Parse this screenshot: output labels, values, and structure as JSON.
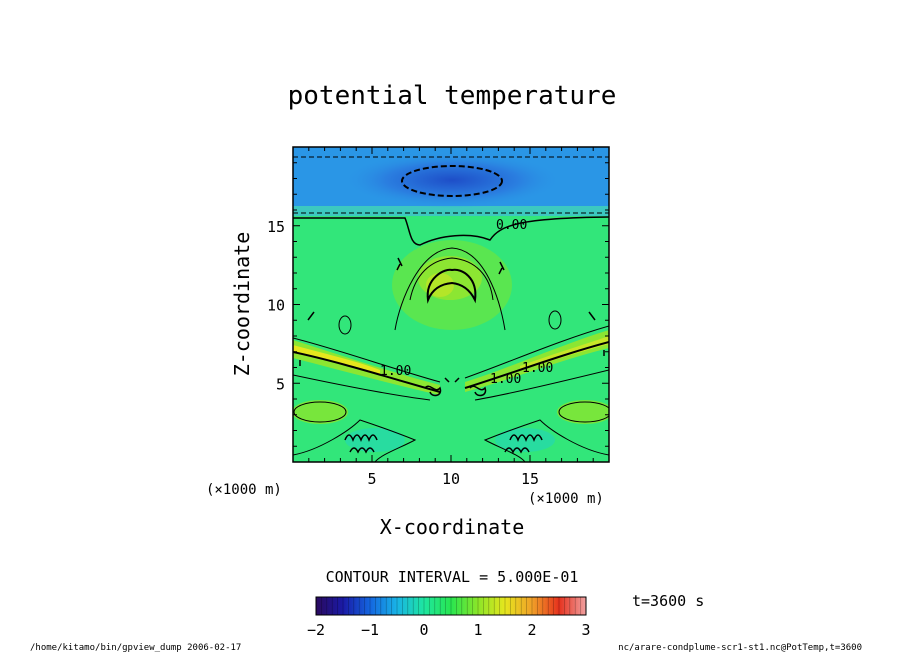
{
  "chart_data": {
    "type": "heatmap",
    "title": "potential temperature",
    "xlabel": "X-coordinate",
    "ylabel": "Z-coordinate",
    "x_unit": "(×1000 m)",
    "y_unit": "(×1000 m)",
    "xlim": [
      0,
      20
    ],
    "ylim": [
      0,
      20
    ],
    "x_ticks": [
      5,
      10,
      15
    ],
    "y_ticks": [
      5,
      10,
      15
    ],
    "contour_interval_text": "CONTOUR INTERVAL = 5.000E-01",
    "contour_labels": [
      "0.00",
      "1.00",
      "1.00",
      "1.00"
    ],
    "colorbar": {
      "range": [
        -2,
        3
      ],
      "ticks": [
        -2,
        -1,
        0,
        1,
        2,
        3
      ],
      "colormap": [
        "#2a0a5e",
        "#1a1aa6",
        "#1466e0",
        "#19b4e6",
        "#1ee6a0",
        "#28e650",
        "#8ce628",
        "#e6e61e",
        "#f0a028",
        "#e6321e",
        "#f0a0a0"
      ]
    },
    "time_label": "t=3600 s",
    "footer_left": "/home/kitamo/bin/gpview_dump  2006-02-17",
    "footer_right": "nc/arare-condplume-scr1-st1.nc@PotTemp,t=3600",
    "field_colors": {
      "background": "#32e67a",
      "upper_band": "#2896e6",
      "upper_core": "#1e5ad2",
      "warm": "#8ce632",
      "warmer": "#c8e628",
      "hot": "#f0c828"
    }
  }
}
